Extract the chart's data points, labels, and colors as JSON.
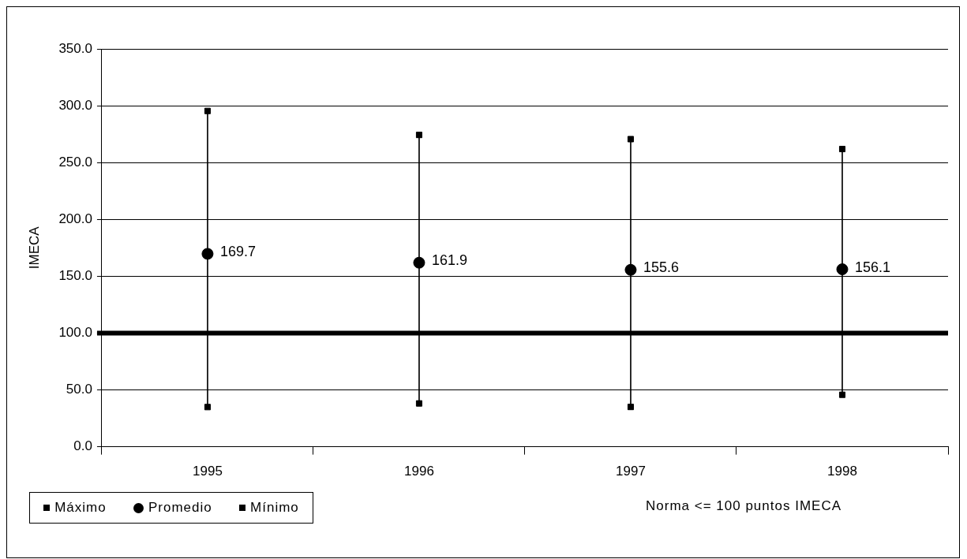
{
  "chart_data": {
    "type": "scatter",
    "ylabel": "IMECA",
    "categories": [
      "1995",
      "1996",
      "1997",
      "1998"
    ],
    "series": [
      {
        "type": "bar",
        "color": "#000000",
        "base": [
          34.9,
          38.1,
          35,
          45.7
        ],
        "values": [
          260.5,
          236.2,
          235.6,
          216.2
        ]
      },
      {
        "name": "Máximo",
        "color": "#000000",
        "marker": "square",
        "values": [
          295.4,
          274.3,
          270.6,
          261.9
        ]
      },
      {
        "name": "Promedio",
        "color": "#000000",
        "marker": "circle",
        "values": [
          169.7,
          161.9,
          155.6,
          156.1
        ],
        "value_labels": [
          "169.7",
          "161.9",
          "155.6",
          "156.1"
        ]
      },
      {
        "name": "Mínimo",
        "color": "#000000",
        "marker": "square",
        "values": [
          34.9,
          38.1,
          35,
          45.7
        ]
      }
    ],
    "ylim": [
      0,
      350
    ],
    "yticks": [
      {
        "value": 0,
        "label": "0.0"
      },
      {
        "value": 50,
        "label": "50.0"
      },
      {
        "value": 100,
        "label": "100.0"
      },
      {
        "value": 150,
        "label": "150.0"
      },
      {
        "value": 200,
        "label": "200.0"
      },
      {
        "value": 250,
        "label": "250.0"
      },
      {
        "value": 300,
        "label": "300.0"
      },
      {
        "value": 350,
        "label": "350.0"
      }
    ],
    "grid": "y",
    "legend": "bottom left",
    "annotations": [
      "Norma <= 100 puntos IMECA"
    ],
    "ref_lines": [
      {
        "axis": "y",
        "value": 100,
        "color": "#000000",
        "line_style": "solid"
      }
    ]
  }
}
